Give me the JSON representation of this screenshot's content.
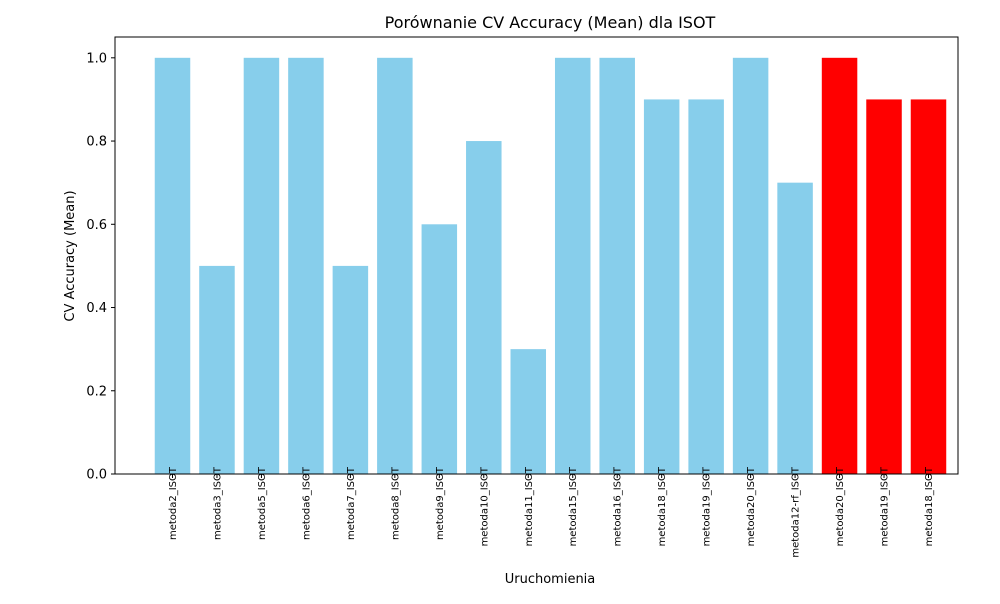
{
  "chart_data": {
    "type": "bar",
    "title": "Porównanie CV Accuracy (Mean) dla ISOT",
    "xlabel": "Uruchomienia",
    "ylabel": "CV Accuracy (Mean)",
    "ylim": [
      0,
      1.05
    ],
    "yticks": [
      "0.0",
      "0.2",
      "0.4",
      "0.6",
      "0.8",
      "1.0"
    ],
    "grid": false,
    "legend": "none",
    "categories": [
      "metoda2_ISOT",
      "metoda3_ISOT",
      "metoda5_ISOT",
      "metoda6_ISOT",
      "metoda7_ISOT",
      "metoda8_ISOT",
      "metoda9_ISOT",
      "metoda10_ISOT",
      "metoda11_ISOT",
      "metoda15_ISOT",
      "metoda16_ISOT",
      "metoda18_ISOT",
      "metoda19_ISOT",
      "metoda20_ISOT",
      "metoda12-rf_ISOT",
      "metoda20_ISOT",
      "metoda19_ISOT",
      "metoda18_ISOT"
    ],
    "values": [
      1.0,
      0.5,
      1.0,
      1.0,
      0.5,
      1.0,
      0.6,
      0.8,
      0.3,
      1.0,
      1.0,
      0.9,
      0.9,
      1.0,
      0.7,
      1.0,
      0.9,
      0.9
    ],
    "bar_colors": [
      "#87ceeb",
      "#87ceeb",
      "#87ceeb",
      "#87ceeb",
      "#87ceeb",
      "#87ceeb",
      "#87ceeb",
      "#87ceeb",
      "#87ceeb",
      "#87ceeb",
      "#87ceeb",
      "#87ceeb",
      "#87ceeb",
      "#87ceeb",
      "#87ceeb",
      "#ff0000",
      "#ff0000",
      "#ff0000"
    ]
  }
}
